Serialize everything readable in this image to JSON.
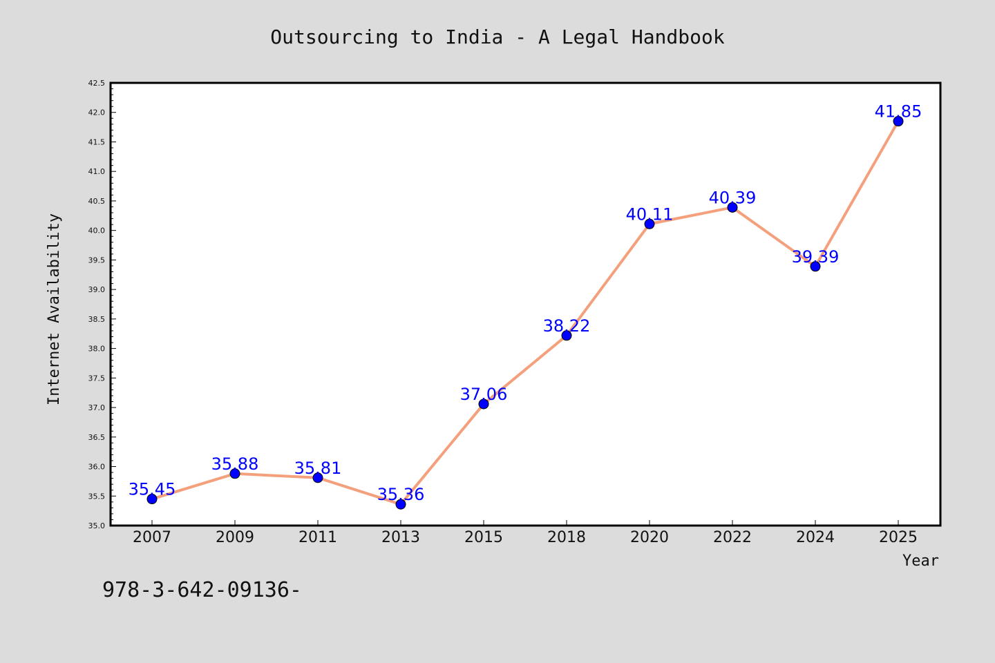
{
  "chart_data": {
    "type": "line",
    "title": "Outsourcing to India - A Legal Handbook",
    "xlabel": "Year",
    "ylabel": "Internet Availability",
    "categories": [
      "2007",
      "2009",
      "2011",
      "2013",
      "2015",
      "2018",
      "2020",
      "2022",
      "2024",
      "2025"
    ],
    "values": [
      35.45,
      35.88,
      35.81,
      35.36,
      37.06,
      38.22,
      40.11,
      40.39,
      39.39,
      41.85
    ],
    "data_labels": [
      "35.45",
      "35.88",
      "35.81",
      "35.36",
      "37.06",
      "38.22",
      "40.11",
      "40.39",
      "39.39",
      "41.85"
    ],
    "ylim": [
      35.0,
      42.5
    ],
    "yticks": [
      "35.0",
      "35.5",
      "36.0",
      "36.5",
      "37.0",
      "37.5",
      "38.0",
      "38.5",
      "39.0",
      "39.5",
      "40.0",
      "40.5",
      "41.0",
      "41.5",
      "42.0",
      "42.5"
    ],
    "grid": false,
    "line_color": "#f4a07c",
    "marker_color": "#0000ff",
    "label_color": "#0000ff",
    "background_color": "#dcdcdc",
    "plot_background_color": "#ffffff"
  },
  "footnote": "978-3-642-09136-"
}
